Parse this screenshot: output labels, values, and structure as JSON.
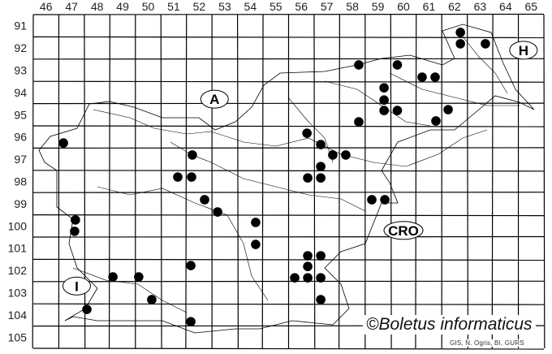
{
  "map": {
    "columns": [
      "46",
      "47",
      "48",
      "49",
      "50",
      "51",
      "52",
      "53",
      "54",
      "55",
      "56",
      "57",
      "58",
      "59",
      "60",
      "61",
      "62",
      "63",
      "64",
      "65"
    ],
    "rows": [
      "91",
      "92",
      "93",
      "94",
      "95",
      "96",
      "97",
      "98",
      "99",
      "100",
      "101",
      "102",
      "103",
      "104",
      "105"
    ],
    "country_labels": [
      {
        "text": "A",
        "col": 52.6,
        "row": 94.3
      },
      {
        "text": "H",
        "col": 64.7,
        "row": 92.1
      },
      {
        "text": "CRO",
        "col": 60.0,
        "row": 100.2
      },
      {
        "text": "I",
        "col": 47.2,
        "row": 102.7
      }
    ],
    "dot_color": "#000000",
    "records": [
      {
        "col": 46.68,
        "row": 96.27
      },
      {
        "col": 51.73,
        "row": 96.81
      },
      {
        "col": 51.16,
        "row": 97.8
      },
      {
        "col": 51.7,
        "row": 97.8
      },
      {
        "col": 52.21,
        "row": 98.82
      },
      {
        "col": 52.72,
        "row": 99.37
      },
      {
        "col": 47.15,
        "row": 99.73
      },
      {
        "col": 47.12,
        "row": 100.24
      },
      {
        "col": 54.21,
        "row": 99.84
      },
      {
        "col": 54.21,
        "row": 100.83
      },
      {
        "col": 51.67,
        "row": 101.78
      },
      {
        "col": 48.62,
        "row": 102.29
      },
      {
        "col": 49.63,
        "row": 102.29
      },
      {
        "col": 50.14,
        "row": 103.31
      },
      {
        "col": 47.6,
        "row": 103.75
      },
      {
        "col": 51.67,
        "row": 104.3
      },
      {
        "col": 56.22,
        "row": 95.83
      },
      {
        "col": 56.76,
        "row": 96.34
      },
      {
        "col": 57.23,
        "row": 96.81
      },
      {
        "col": 57.74,
        "row": 96.81
      },
      {
        "col": 56.76,
        "row": 97.33
      },
      {
        "col": 56.25,
        "row": 97.84
      },
      {
        "col": 56.76,
        "row": 97.84
      },
      {
        "col": 58.25,
        "row": 92.76
      },
      {
        "col": 58.25,
        "row": 95.32
      },
      {
        "col": 59.76,
        "row": 92.76
      },
      {
        "col": 59.24,
        "row": 93.79
      },
      {
        "col": 59.24,
        "row": 94.34
      },
      {
        "col": 59.24,
        "row": 94.81
      },
      {
        "col": 59.76,
        "row": 94.81
      },
      {
        "col": 60.73,
        "row": 93.31
      },
      {
        "col": 61.24,
        "row": 93.31
      },
      {
        "col": 62.23,
        "row": 91.3
      },
      {
        "col": 62.23,
        "row": 91.81
      },
      {
        "col": 63.21,
        "row": 91.81
      },
      {
        "col": 61.75,
        "row": 94.77
      },
      {
        "col": 61.27,
        "row": 95.28
      },
      {
        "col": 58.76,
        "row": 98.82
      },
      {
        "col": 59.27,
        "row": 98.82
      },
      {
        "col": 56.25,
        "row": 101.34
      },
      {
        "col": 56.76,
        "row": 101.34
      },
      {
        "col": 56.25,
        "row": 101.82
      },
      {
        "col": 55.74,
        "row": 102.33
      },
      {
        "col": 56.25,
        "row": 102.33
      },
      {
        "col": 56.76,
        "row": 102.33
      },
      {
        "col": 56.76,
        "row": 103.31
      }
    ]
  },
  "copyright": "©Boletus informaticus",
  "credits": "GIS, N. Ogris, BI, GURS"
}
